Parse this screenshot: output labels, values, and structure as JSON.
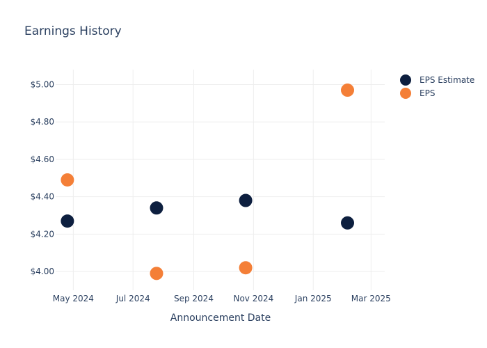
{
  "chart_data": {
    "type": "scatter",
    "title": "Earnings History",
    "xlabel": "Announcement Date",
    "ylabel": "",
    "x_tick_labels": [
      "May 2024",
      "Jul 2024",
      "Sep 2024",
      "Nov 2024",
      "Jan 2025",
      "Mar 2025"
    ],
    "x_tick_dates": [
      "2024-05-01",
      "2024-07-01",
      "2024-09-01",
      "2024-11-01",
      "2025-01-01",
      "2025-03-01"
    ],
    "xlim": [
      "2024-04-13",
      "2025-03-15"
    ],
    "y_tick_labels": [
      "$4.00",
      "$4.20",
      "$4.40",
      "$4.60",
      "$4.80",
      "$5.00"
    ],
    "y_ticks": [
      4.0,
      4.2,
      4.4,
      4.6,
      4.8,
      5.0
    ],
    "ylim": [
      3.9,
      5.08
    ],
    "grid": true,
    "legend_position": "top-right",
    "series": [
      {
        "name": "EPS Estimate",
        "color": "#0d1f3f",
        "points": [
          {
            "x": "2024-04-25",
            "y": 4.27
          },
          {
            "x": "2024-07-25",
            "y": 4.34
          },
          {
            "x": "2024-10-24",
            "y": 4.38
          },
          {
            "x": "2025-02-05",
            "y": 4.26
          }
        ]
      },
      {
        "name": "EPS",
        "color": "#f47f37",
        "points": [
          {
            "x": "2024-04-25",
            "y": 4.49
          },
          {
            "x": "2024-07-25",
            "y": 3.99
          },
          {
            "x": "2024-10-24",
            "y": 4.02
          },
          {
            "x": "2025-02-05",
            "y": 4.97
          }
        ]
      }
    ]
  }
}
